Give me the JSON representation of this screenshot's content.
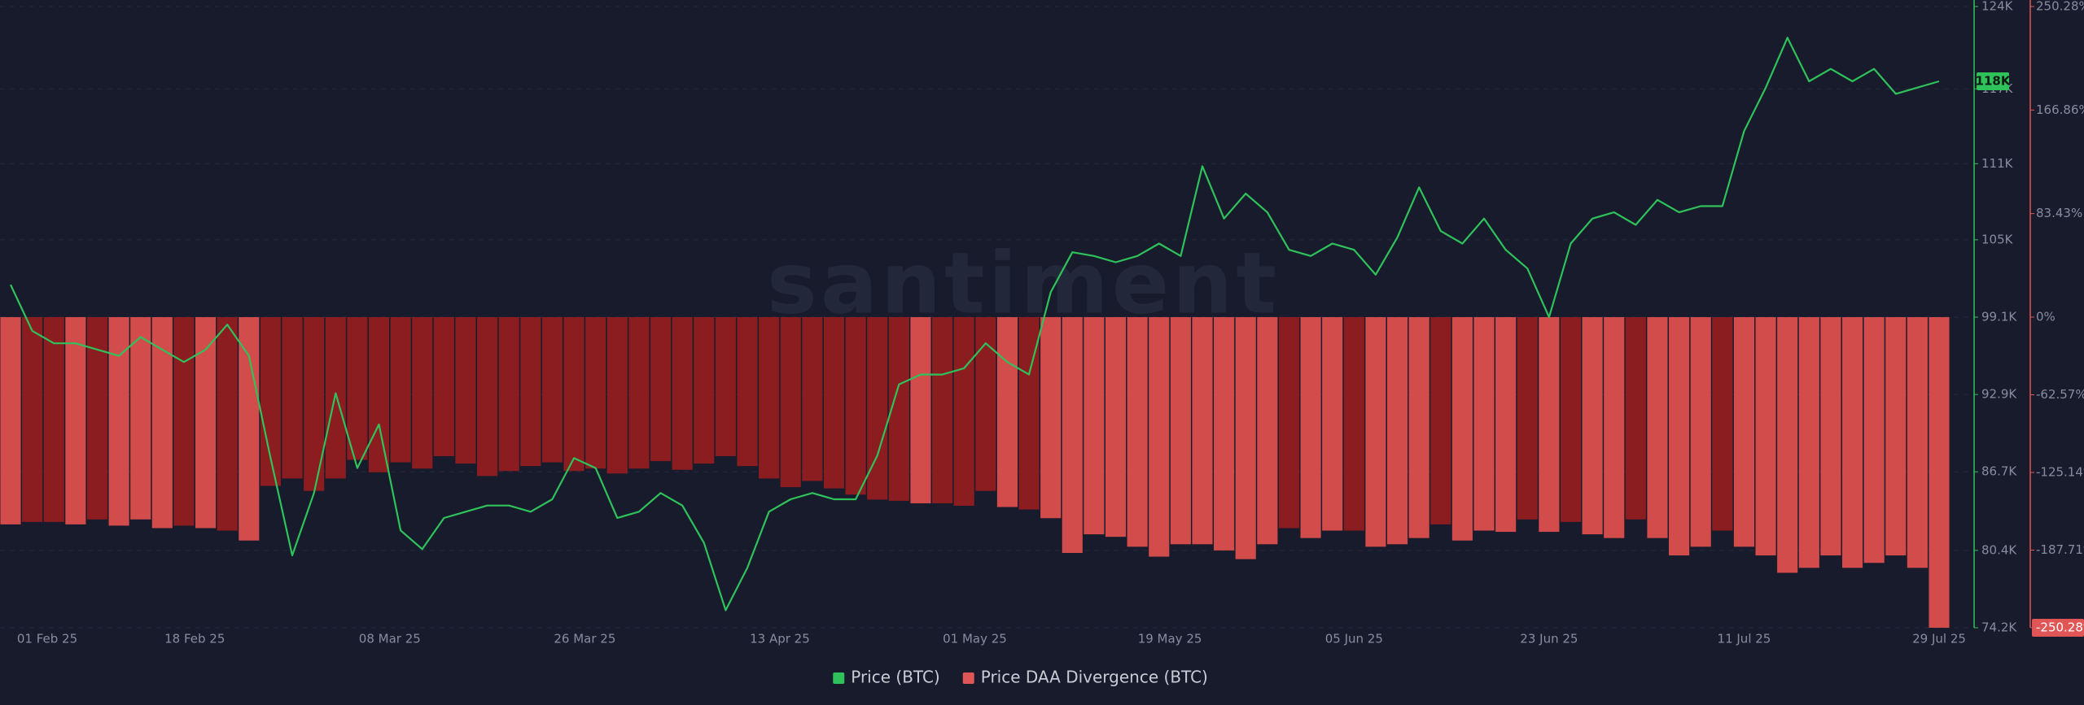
{
  "chart_data": {
    "type": "line-bar",
    "watermark": "santiment",
    "x": [
      "2025-02-01",
      "2025-02-03",
      "2025-02-05",
      "2025-02-07",
      "2025-02-09",
      "2025-02-11",
      "2025-02-13",
      "2025-02-15",
      "2025-02-17",
      "2025-02-19",
      "2025-02-21",
      "2025-02-23",
      "2025-02-25",
      "2025-02-27",
      "2025-03-01",
      "2025-03-03",
      "2025-03-05",
      "2025-03-07",
      "2025-03-09",
      "2025-03-11",
      "2025-03-13",
      "2025-03-15",
      "2025-03-17",
      "2025-03-19",
      "2025-03-21",
      "2025-03-23",
      "2025-03-25",
      "2025-03-27",
      "2025-03-29",
      "2025-03-31",
      "2025-04-02",
      "2025-04-04",
      "2025-04-06",
      "2025-04-08",
      "2025-04-10",
      "2025-04-12",
      "2025-04-14",
      "2025-04-16",
      "2025-04-18",
      "2025-04-20",
      "2025-04-22",
      "2025-04-24",
      "2025-04-26",
      "2025-04-28",
      "2025-04-30",
      "2025-05-02",
      "2025-05-04",
      "2025-05-06",
      "2025-05-08",
      "2025-05-10",
      "2025-05-12",
      "2025-05-14",
      "2025-05-16",
      "2025-05-18",
      "2025-05-20",
      "2025-05-22",
      "2025-05-24",
      "2025-05-26",
      "2025-05-28",
      "2025-05-30",
      "2025-06-01",
      "2025-06-03",
      "2025-06-05",
      "2025-06-07",
      "2025-06-09",
      "2025-06-11",
      "2025-06-13",
      "2025-06-15",
      "2025-06-17",
      "2025-06-19",
      "2025-06-21",
      "2025-06-23",
      "2025-06-25",
      "2025-06-27",
      "2025-06-29",
      "2025-07-01",
      "2025-07-03",
      "2025-07-05",
      "2025-07-07",
      "2025-07-09",
      "2025-07-11",
      "2025-07-13",
      "2025-07-15",
      "2025-07-17",
      "2025-07-19",
      "2025-07-21",
      "2025-07-23",
      "2025-07-25",
      "2025-07-27",
      "2025-07-29"
    ],
    "xlim": [
      "2025-02-01",
      "2025-07-29"
    ],
    "xticks": [
      {
        "value": "2025-02-01",
        "label": "01 Feb 25"
      },
      {
        "value": "2025-02-18",
        "label": "18 Feb 25"
      },
      {
        "value": "2025-03-08",
        "label": "08 Mar 25"
      },
      {
        "value": "2025-03-26",
        "label": "26 Mar 25"
      },
      {
        "value": "2025-04-13",
        "label": "13 Apr 25"
      },
      {
        "value": "2025-05-01",
        "label": "01 May 25"
      },
      {
        "value": "2025-05-19",
        "label": "19 May 25"
      },
      {
        "value": "2025-06-05",
        "label": "05 Jun 25"
      },
      {
        "value": "2025-06-23",
        "label": "23 Jun 25"
      },
      {
        "value": "2025-07-11",
        "label": "11 Jul 25"
      },
      {
        "value": "2025-07-29",
        "label": "29 Jul 25"
      }
    ],
    "ylim": [
      74200,
      124000
    ],
    "yticks": [
      {
        "value": 74200,
        "label": "74.2K"
      },
      {
        "value": 80400,
        "label": "80.4K"
      },
      {
        "value": 86700,
        "label": "86.7K"
      },
      {
        "value": 92900,
        "label": "92.9K"
      },
      {
        "value": 99100,
        "label": "99.1K"
      },
      {
        "value": 105300,
        "label": "105K"
      },
      {
        "value": 111400,
        "label": "111K"
      },
      {
        "value": 117400,
        "label": "117K"
      },
      {
        "value": 124000,
        "label": "124K"
      }
    ],
    "y2lim": [
      -250.28,
      250.28
    ],
    "y2ticks": [
      {
        "value": 250.28,
        "label": "250.28%"
      },
      {
        "value": 166.86,
        "label": "166.86%"
      },
      {
        "value": 83.43,
        "label": "83.43%"
      },
      {
        "value": 0,
        "label": "0%"
      },
      {
        "value": -62.57,
        "label": "-62.57%"
      },
      {
        "value": -125.14,
        "label": "-125.14%"
      },
      {
        "value": -187.71,
        "label": "-187.71%"
      },
      {
        "value": -250.28,
        "label": "-250.28%"
      }
    ],
    "grid": true,
    "last_price_label": {
      "value": 118000,
      "label": "118K"
    },
    "legend": "bottom",
    "series": [
      {
        "name": "Price (BTC)",
        "color": "#2fc25b",
        "kind": "line",
        "values": [
          101700,
          98000,
          97000,
          97000,
          96500,
          96000,
          97500,
          96500,
          95500,
          96500,
          98500,
          96000,
          87800,
          80000,
          85000,
          93000,
          87000,
          90500,
          82000,
          80500,
          83000,
          83500,
          84000,
          84000,
          83500,
          84500,
          87800,
          87000,
          83000,
          83500,
          85000,
          84000,
          81000,
          75600,
          79000,
          83500,
          84500,
          85000,
          84500,
          84500,
          88000,
          93700,
          94500,
          94500,
          95000,
          97000,
          95500,
          94500,
          101100,
          104300,
          104000,
          103500,
          104000,
          105000,
          104000,
          111200,
          107000,
          109000,
          107500,
          104500,
          104000,
          105000,
          104500,
          102500,
          105500,
          109500,
          106000,
          105000,
          107000,
          104500,
          103000,
          99100,
          105000,
          107000,
          107500,
          106500,
          108500,
          107500,
          108000,
          108000,
          114000,
          117500,
          121500,
          118000,
          119000,
          118000,
          119000,
          117000,
          117500,
          118000
        ]
      },
      {
        "name": "Price DAA Divergence (BTC)",
        "color": "#e05555",
        "kind": "bar",
        "axis": "y2",
        "values": [
          -167,
          -165,
          -165,
          -167,
          -163,
          -168,
          -163,
          -170,
          -168,
          -170,
          -172,
          -180,
          -136,
          -130,
          -140,
          -130,
          -115,
          -125,
          -117,
          -122,
          -112,
          -118,
          -128,
          -124,
          -120,
          -117,
          -124,
          -122,
          -126,
          -122,
          -116,
          -123,
          -118,
          -112,
          -120,
          -130,
          -137,
          -132,
          -138,
          -143,
          -147,
          -148,
          -150,
          -150,
          -152,
          -140,
          -153,
          -155,
          -162,
          -190,
          -175,
          -177,
          -185,
          -193,
          -183,
          -183,
          -188,
          -195,
          -183,
          -170,
          -178,
          -172,
          -172,
          -185,
          -183,
          -178,
          -167,
          -180,
          -172,
          -173,
          -163,
          -173,
          -165,
          -175,
          -178,
          -163,
          -178,
          -192,
          -185,
          -172,
          -185,
          -192,
          -206,
          -202,
          -192,
          -202,
          -198,
          -192,
          -202,
          -250.28
        ],
        "colors": [
          "#d24c4c",
          "#8b1d20",
          "#8b1d20",
          "#d24c4c",
          "#8b1d20",
          "#d24c4c",
          "#d24c4c",
          "#d24c4c",
          "#8b1d20",
          "#d24c4c",
          "#8b1d20",
          "#d24c4c",
          "#8b1d20",
          "#8b1d20",
          "#8b1d20",
          "#8b1d20",
          "#8b1d20",
          "#8b1d20",
          "#8b1d20",
          "#8b1d20",
          "#8b1d20",
          "#8b1d20",
          "#8b1d20",
          "#8b1d20",
          "#8b1d20",
          "#8b1d20",
          "#8b1d20",
          "#8b1d20",
          "#8b1d20",
          "#8b1d20",
          "#8b1d20",
          "#8b1d20",
          "#8b1d20",
          "#8b1d20",
          "#8b1d20",
          "#8b1d20",
          "#8b1d20",
          "#8b1d20",
          "#8b1d20",
          "#8b1d20",
          "#8b1d20",
          "#8b1d20",
          "#d24c4c",
          "#8b1d20",
          "#8b1d20",
          "#8b1d20",
          "#d24c4c",
          "#8b1d20",
          "#d24c4c",
          "#d24c4c",
          "#d24c4c",
          "#d24c4c",
          "#d24c4c",
          "#d24c4c",
          "#d24c4c",
          "#d24c4c",
          "#d24c4c",
          "#d24c4c",
          "#d24c4c",
          "#8b1d20",
          "#d24c4c",
          "#d24c4c",
          "#8b1d20",
          "#d24c4c",
          "#d24c4c",
          "#d24c4c",
          "#8b1d20",
          "#d24c4c",
          "#d24c4c",
          "#d24c4c",
          "#8b1d20",
          "#d24c4c",
          "#8b1d20",
          "#d24c4c",
          "#d24c4c",
          "#8b1d20",
          "#d24c4c",
          "#d24c4c",
          "#d24c4c",
          "#8b1d20",
          "#d24c4c",
          "#d24c4c",
          "#d24c4c",
          "#d24c4c",
          "#d24c4c",
          "#d24c4c",
          "#d24c4c",
          "#d24c4c",
          "#d24c4c",
          "#d24c4c"
        ]
      }
    ]
  }
}
